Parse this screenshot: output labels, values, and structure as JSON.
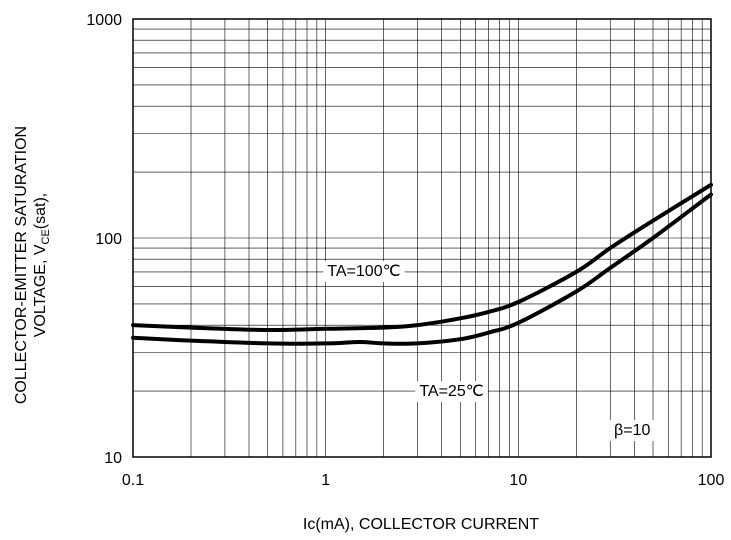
{
  "chart_data": {
    "type": "line",
    "xscale": "log",
    "yscale": "log",
    "xlim": [
      0.1,
      100
    ],
    "ylim": [
      10,
      1000
    ],
    "grid": true,
    "xlabel": "Ic(mA), COLLECTOR CURRENT",
    "ylabel_line1": "COLLECTOR-EMITTER SATURATION",
    "ylabel_line2_prefix": "VOLTAGE, V",
    "ylabel_line2_sub": "CE",
    "ylabel_line2_suffix": "(sat),",
    "x_ticks": [
      {
        "value": 0.1,
        "label": "0.1"
      },
      {
        "value": 1,
        "label": "1"
      },
      {
        "value": 10,
        "label": "10"
      },
      {
        "value": 100,
        "label": "100"
      }
    ],
    "y_ticks": [
      {
        "value": 10,
        "label": "10"
      },
      {
        "value": 100,
        "label": "100"
      },
      {
        "value": 1000,
        "label": "1000"
      }
    ],
    "series": [
      {
        "name": "TA=100℃",
        "x": [
          0.1,
          0.2,
          0.5,
          1,
          2,
          3,
          5,
          7,
          10,
          20,
          30,
          50,
          100
        ],
        "y": [
          40,
          39,
          38,
          38.5,
          39,
          40,
          43,
          46,
          51,
          70,
          90,
          120,
          175
        ]
      },
      {
        "name": "TA=25℃",
        "x": [
          0.1,
          0.2,
          0.5,
          1,
          1.5,
          2,
          3,
          5,
          7,
          10,
          20,
          30,
          50,
          100
        ],
        "y": [
          35,
          34,
          33,
          33,
          33.5,
          33,
          33,
          34.5,
          37,
          41,
          57,
          73,
          100,
          158
        ]
      }
    ],
    "annotations": [
      {
        "text": "TA=100℃",
        "x": 1.58,
        "y": 67
      },
      {
        "text": "TA=25℃",
        "x": 4.5,
        "y": 19
      },
      {
        "text": "β=10",
        "x": 39,
        "y": 12.6
      }
    ]
  }
}
